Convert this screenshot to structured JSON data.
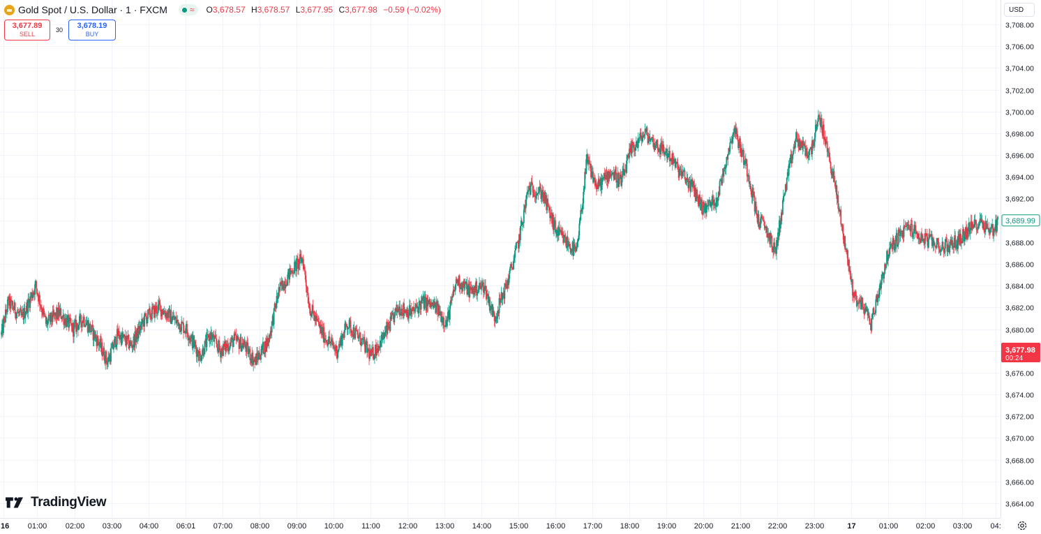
{
  "header": {
    "symbol_title": "Gold Spot / U.S. Dollar · 1 · FXCM",
    "delay_symbol": "≈",
    "ohlc": {
      "o_label": "O",
      "o_value": "3,678.57",
      "h_label": "H",
      "h_value": "3,678.57",
      "l_label": "L",
      "l_value": "3,677.95",
      "c_label": "C",
      "c_value": "3,677.98",
      "change": "−0.59 (−0.02%)"
    }
  },
  "trade": {
    "sell_price": "3,677.89",
    "sell_label": "SELL",
    "spread": "30",
    "buy_price": "3,678.19",
    "buy_label": "BUY"
  },
  "currency": "USD",
  "brand": "TradingView",
  "colors": {
    "up": "#089981",
    "down": "#f23645",
    "buy": "#2962ff",
    "grid": "#f0f3fa"
  },
  "chart_data": {
    "type": "candlestick",
    "title": "Gold Spot / U.S. Dollar · 1 · FXCM",
    "y_ticks": [
      "3,708.00",
      "3,706.00",
      "3,704.00",
      "3,702.00",
      "3,700.00",
      "3,698.00",
      "3,696.00",
      "3,694.00",
      "3,692.00",
      "3,690.00",
      "3,688.00",
      "3,686.00",
      "3,684.00",
      "3,682.00",
      "3,680.00",
      "3,678.00",
      "3,676.00",
      "3,674.00",
      "3,672.00",
      "3,670.00",
      "3,668.00",
      "3,666.00",
      "3,664.00"
    ],
    "x_ticks": [
      "16",
      "01:00",
      "02:00",
      "03:00",
      "04:00",
      "06:01",
      "07:00",
      "08:00",
      "09:00",
      "10:00",
      "11:00",
      "12:00",
      "13:00",
      "14:00",
      "15:00",
      "16:00",
      "17:00",
      "18:00",
      "19:00",
      "20:00",
      "21:00",
      "22:00",
      "23:00",
      "17",
      "01:00",
      "02:00",
      "03:00",
      "04:"
    ],
    "ylim": [
      3663,
      3709
    ],
    "grid": true,
    "price_labels": [
      {
        "price": 3689.99,
        "text": "3,689.99",
        "style": "outline-up"
      },
      {
        "price": 3677.98,
        "text": "3,677.98",
        "sub": "00:24",
        "style": "filled-down"
      }
    ],
    "anchors": [
      [
        0,
        3679.5
      ],
      [
        2,
        3682.5
      ],
      [
        6,
        3681.0
      ],
      [
        10,
        3684.0
      ],
      [
        13,
        3680.5
      ],
      [
        17,
        3681.5
      ],
      [
        21,
        3680.0
      ],
      [
        24,
        3681.0
      ],
      [
        28,
        3679.0
      ],
      [
        31,
        3677.0
      ],
      [
        34,
        3679.5
      ],
      [
        38,
        3678.5
      ],
      [
        42,
        3681.0
      ],
      [
        46,
        3682.0
      ],
      [
        50,
        3681.0
      ],
      [
        54,
        3680.0
      ],
      [
        58,
        3677.5
      ],
      [
        61,
        3679.5
      ],
      [
        64,
        3678.0
      ],
      [
        68,
        3679.0
      ],
      [
        71,
        3678.5
      ],
      [
        74,
        3677.0
      ],
      [
        78,
        3679.0
      ],
      [
        81,
        3683.5
      ],
      [
        85,
        3685.5
      ],
      [
        88,
        3686.5
      ],
      [
        90,
        3682.0
      ],
      [
        94,
        3679.5
      ],
      [
        98,
        3678.0
      ],
      [
        101,
        3680.5
      ],
      [
        105,
        3679.0
      ],
      [
        108,
        3677.5
      ],
      [
        112,
        3679.5
      ],
      [
        116,
        3682.0
      ],
      [
        120,
        3681.5
      ],
      [
        123,
        3682.5
      ],
      [
        127,
        3682.0
      ],
      [
        130,
        3680.5
      ],
      [
        133,
        3684.5
      ],
      [
        137,
        3683.5
      ],
      [
        141,
        3684.0
      ],
      [
        144,
        3681.0
      ],
      [
        148,
        3684.5
      ],
      [
        151,
        3688.0
      ],
      [
        154,
        3693.0
      ],
      [
        158,
        3692.5
      ],
      [
        162,
        3689.0
      ],
      [
        165,
        3688.0
      ],
      [
        168,
        3687.0
      ],
      [
        171,
        3695.5
      ],
      [
        174,
        3693.0
      ],
      [
        178,
        3694.5
      ],
      [
        181,
        3693.5
      ],
      [
        184,
        3696.5
      ],
      [
        188,
        3698.0
      ],
      [
        191,
        3697.0
      ],
      [
        195,
        3696.0
      ],
      [
        198,
        3694.5
      ],
      [
        202,
        3693.0
      ],
      [
        205,
        3691.0
      ],
      [
        209,
        3692.0
      ],
      [
        212,
        3696.0
      ],
      [
        214,
        3698.5
      ],
      [
        218,
        3694.5
      ],
      [
        221,
        3690.0
      ],
      [
        223,
        3689.5
      ],
      [
        226,
        3687.0
      ],
      [
        229,
        3693.0
      ],
      [
        232,
        3697.5
      ],
      [
        236,
        3696.0
      ],
      [
        239,
        3699.5
      ],
      [
        243,
        3694.0
      ],
      [
        246,
        3688.5
      ],
      [
        249,
        3683.0
      ],
      [
        252,
        3682.0
      ],
      [
        254,
        3680.5
      ],
      [
        257,
        3684.5
      ],
      [
        259,
        3687.0
      ],
      [
        262,
        3688.5
      ],
      [
        265,
        3689.5
      ],
      [
        268,
        3688.5
      ],
      [
        272,
        3688.0
      ],
      [
        275,
        3687.5
      ],
      [
        279,
        3688.0
      ],
      [
        282,
        3689.0
      ],
      [
        286,
        3690.0
      ],
      [
        289,
        3689.0
      ],
      [
        291,
        3689.8
      ]
    ]
  }
}
